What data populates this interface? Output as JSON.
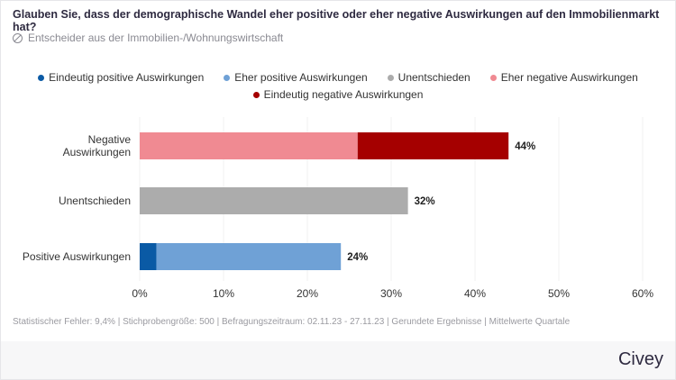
{
  "title": "Glauben Sie, dass der demographische Wandel eher positive oder eher negative Auswirkungen auf den Immobilienmarkt hat?",
  "subtitle": "Entscheider aus der Immobilien-/Wohnungswirtschaft",
  "subtitle_icon": "target-group-icon",
  "footer": "Statistischer Fehler: 9,4% | Stichprobengröße: 500 | Befragungszeitraum: 02.11.23 - 27.11.23 | Gerundete Ergebnisse | Mittelwerte Quartale",
  "brand": "Civey",
  "chart_data": {
    "type": "bar",
    "orientation": "horizontal",
    "stacked": true,
    "categories": [
      [
        "Negative",
        "Auswirkungen"
      ],
      [
        "Unentschieden"
      ],
      [
        "Positive Auswirkungen"
      ]
    ],
    "series": [
      {
        "name": "Eindeutig positive Auswirkungen",
        "color": "#0a5aa5",
        "values": [
          0,
          0,
          2
        ]
      },
      {
        "name": "Eher positive Auswirkungen",
        "color": "#6fa1d6",
        "values": [
          0,
          0,
          22
        ]
      },
      {
        "name": "Unentschieden",
        "color": "#acacac",
        "values": [
          0,
          32,
          0
        ]
      },
      {
        "name": "Eher negative Auswirkungen",
        "color": "#f08a92",
        "values": [
          26,
          0,
          0
        ]
      },
      {
        "name": "Eindeutig negative Auswirkungen",
        "color": "#a50000",
        "values": [
          18,
          0,
          0
        ]
      }
    ],
    "totals": [
      "44%",
      "32%",
      "24%"
    ],
    "xlim": [
      0,
      60
    ],
    "xticks": [
      "0%",
      "10%",
      "20%",
      "30%",
      "40%",
      "50%",
      "60%"
    ],
    "grid": true,
    "legend": "top-center"
  }
}
